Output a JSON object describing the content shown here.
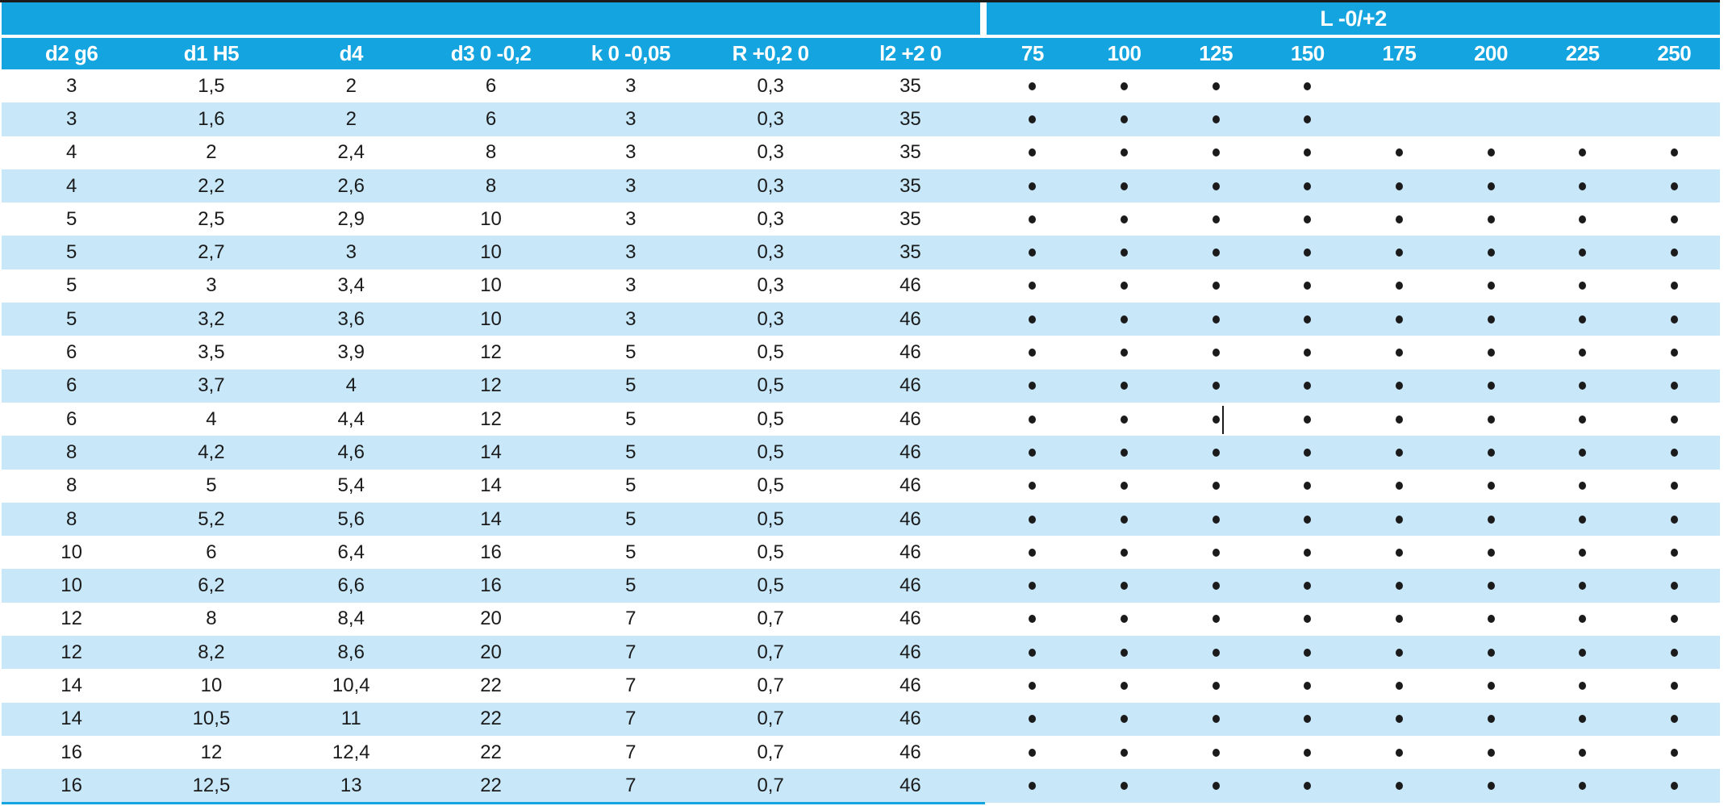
{
  "header": {
    "group_label": "L -0/+2",
    "spec_columns": [
      "d2 g6",
      "d1 H5",
      "d4",
      "d3 0 -0,2",
      "k 0 -0,05",
      "R +0,2 0",
      "l2 +2 0"
    ],
    "length_columns": [
      "75",
      "100",
      "125",
      "150",
      "175",
      "200",
      "225",
      "250"
    ]
  },
  "dot_symbol": "•",
  "rows": [
    {
      "values": [
        "3",
        "1,5",
        "2",
        "6",
        "3",
        "0,3",
        "35"
      ],
      "dots": [
        1,
        1,
        1,
        1,
        0,
        0,
        0,
        0
      ]
    },
    {
      "values": [
        "3",
        "1,6",
        "2",
        "6",
        "3",
        "0,3",
        "35"
      ],
      "dots": [
        1,
        1,
        1,
        1,
        0,
        0,
        0,
        0
      ]
    },
    {
      "values": [
        "4",
        "2",
        "2,4",
        "8",
        "3",
        "0,3",
        "35"
      ],
      "dots": [
        1,
        1,
        1,
        1,
        1,
        1,
        1,
        1
      ]
    },
    {
      "values": [
        "4",
        "2,2",
        "2,6",
        "8",
        "3",
        "0,3",
        "35"
      ],
      "dots": [
        1,
        1,
        1,
        1,
        1,
        1,
        1,
        1
      ]
    },
    {
      "values": [
        "5",
        "2,5",
        "2,9",
        "10",
        "3",
        "0,3",
        "35"
      ],
      "dots": [
        1,
        1,
        1,
        1,
        1,
        1,
        1,
        1
      ]
    },
    {
      "values": [
        "5",
        "2,7",
        "3",
        "10",
        "3",
        "0,3",
        "35"
      ],
      "dots": [
        1,
        1,
        1,
        1,
        1,
        1,
        1,
        1
      ]
    },
    {
      "values": [
        "5",
        "3",
        "3,4",
        "10",
        "3",
        "0,3",
        "46"
      ],
      "dots": [
        1,
        1,
        1,
        1,
        1,
        1,
        1,
        1
      ]
    },
    {
      "values": [
        "5",
        "3,2",
        "3,6",
        "10",
        "3",
        "0,3",
        "46"
      ],
      "dots": [
        1,
        1,
        1,
        1,
        1,
        1,
        1,
        1
      ]
    },
    {
      "values": [
        "6",
        "3,5",
        "3,9",
        "12",
        "5",
        "0,5",
        "46"
      ],
      "dots": [
        1,
        1,
        1,
        1,
        1,
        1,
        1,
        1
      ]
    },
    {
      "values": [
        "6",
        "3,7",
        "4",
        "12",
        "5",
        "0,5",
        "46"
      ],
      "dots": [
        1,
        1,
        1,
        1,
        1,
        1,
        1,
        1
      ]
    },
    {
      "values": [
        "6",
        "4",
        "4,4",
        "12",
        "5",
        "0,5",
        "46"
      ],
      "dots": [
        1,
        1,
        1,
        1,
        1,
        1,
        1,
        1
      ]
    },
    {
      "values": [
        "8",
        "4,2",
        "4,6",
        "14",
        "5",
        "0,5",
        "46"
      ],
      "dots": [
        1,
        1,
        1,
        1,
        1,
        1,
        1,
        1
      ]
    },
    {
      "values": [
        "8",
        "5",
        "5,4",
        "14",
        "5",
        "0,5",
        "46"
      ],
      "dots": [
        1,
        1,
        1,
        1,
        1,
        1,
        1,
        1
      ]
    },
    {
      "values": [
        "8",
        "5,2",
        "5,6",
        "14",
        "5",
        "0,5",
        "46"
      ],
      "dots": [
        1,
        1,
        1,
        1,
        1,
        1,
        1,
        1
      ]
    },
    {
      "values": [
        "10",
        "6",
        "6,4",
        "16",
        "5",
        "0,5",
        "46"
      ],
      "dots": [
        1,
        1,
        1,
        1,
        1,
        1,
        1,
        1
      ]
    },
    {
      "values": [
        "10",
        "6,2",
        "6,6",
        "16",
        "5",
        "0,5",
        "46"
      ],
      "dots": [
        1,
        1,
        1,
        1,
        1,
        1,
        1,
        1
      ]
    },
    {
      "values": [
        "12",
        "8",
        "8,4",
        "20",
        "7",
        "0,7",
        "46"
      ],
      "dots": [
        1,
        1,
        1,
        1,
        1,
        1,
        1,
        1
      ]
    },
    {
      "values": [
        "12",
        "8,2",
        "8,6",
        "20",
        "7",
        "0,7",
        "46"
      ],
      "dots": [
        1,
        1,
        1,
        1,
        1,
        1,
        1,
        1
      ]
    },
    {
      "values": [
        "14",
        "10",
        "10,4",
        "22",
        "7",
        "0,7",
        "46"
      ],
      "dots": [
        1,
        1,
        1,
        1,
        1,
        1,
        1,
        1
      ]
    },
    {
      "values": [
        "14",
        "10,5",
        "11",
        "22",
        "7",
        "0,7",
        "46"
      ],
      "dots": [
        1,
        1,
        1,
        1,
        1,
        1,
        1,
        1
      ]
    },
    {
      "values": [
        "16",
        "12",
        "12,4",
        "22",
        "7",
        "0,7",
        "46"
      ],
      "dots": [
        1,
        1,
        1,
        1,
        1,
        1,
        1,
        1
      ]
    },
    {
      "values": [
        "16",
        "12,5",
        "13",
        "22",
        "7",
        "0,7",
        "46"
      ],
      "dots": [
        1,
        1,
        1,
        1,
        1,
        1,
        1,
        1
      ]
    }
  ],
  "colors": {
    "header_blue": "#14A4DF",
    "row_stripe_blue": "#C8E8FA",
    "header_text": "#FFFFFF",
    "body_text": "#1B1B1B",
    "top_rule": "#1C1C1C"
  },
  "artifact": {
    "cursor_row": 11,
    "cursor_near_length_column": "125"
  }
}
